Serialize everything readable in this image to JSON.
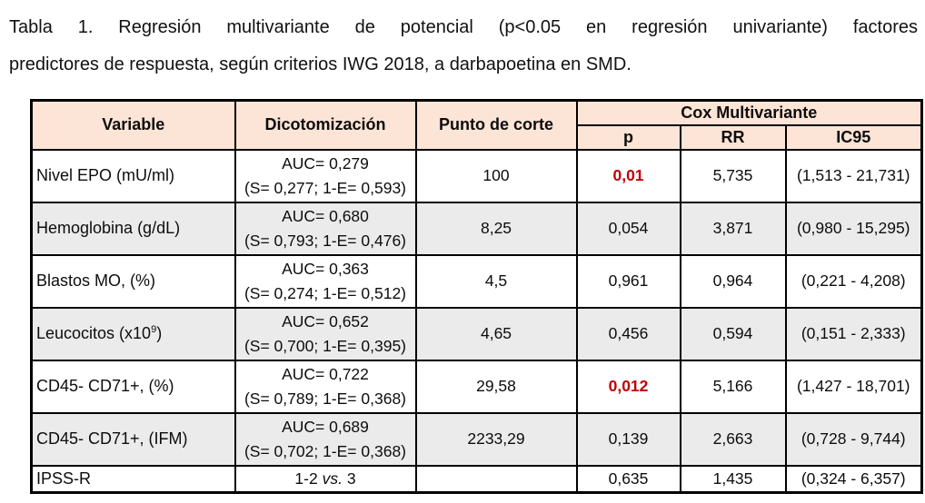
{
  "title": {
    "line1": "Tabla 1. Regresión multivariante de potencial (p<0.05 en regresión univariante) factores",
    "line2": "predictores de respuesta, según criterios IWG 2018, a darbapoetina en SMD."
  },
  "colors": {
    "header_bg": "#FCE4D6",
    "row_alt_bg": "#EBEBEB",
    "significant_text": "#C00000",
    "border": "#000000"
  },
  "table": {
    "headers": {
      "variable": "Variable",
      "dichotomization": "Dicotomización",
      "cutoff": "Punto de corte",
      "cox_group": "Cox Multivariante",
      "p": "p",
      "rr": "RR",
      "ic95": "IC95"
    },
    "rows": [
      {
        "variable": {
          "pre": "Nivel EPO (mU/ml)",
          "sup": "",
          "post": ""
        },
        "dichotomization": {
          "l1pre": "AUC= 0,279",
          "l1it": "",
          "l1post": "",
          "line2": "(S= 0,277; 1-E= 0,593)"
        },
        "cutoff": "100",
        "p": "0,01",
        "p_significant": true,
        "rr": "5,735",
        "ic95": "(1,513 - 21,731)",
        "shaded": false
      },
      {
        "variable": {
          "pre": "Hemoglobina (g/dL)",
          "sup": "",
          "post": ""
        },
        "dichotomization": {
          "l1pre": "AUC= 0,680",
          "l1it": "",
          "l1post": "",
          "line2": "(S= 0,793; 1-E= 0,476)"
        },
        "cutoff": "8,25",
        "p": "0,054",
        "p_significant": false,
        "rr": "3,871",
        "ic95": "(0,980 - 15,295)",
        "shaded": true
      },
      {
        "variable": {
          "pre": "Blastos MO, (%)",
          "sup": "",
          "post": ""
        },
        "dichotomization": {
          "l1pre": "AUC= 0,363",
          "l1it": "",
          "l1post": "",
          "line2": "(S= 0,274; 1-E= 0,512)"
        },
        "cutoff": "4,5",
        "p": "0,961",
        "p_significant": false,
        "rr": "0,964",
        "ic95": "(0,221 - 4,208)",
        "shaded": false
      },
      {
        "variable": {
          "pre": "Leucocitos (x10",
          "sup": "9",
          "post": ")"
        },
        "dichotomization": {
          "l1pre": "AUC= 0,652",
          "l1it": "",
          "l1post": "",
          "line2": "(S= 0,700; 1-E= 0,395)"
        },
        "cutoff": "4,65",
        "p": "0,456",
        "p_significant": false,
        "rr": "0,594",
        "ic95": "(0,151 - 2,333)",
        "shaded": true
      },
      {
        "variable": {
          "pre": "CD45- CD71+, (%)",
          "sup": "",
          "post": ""
        },
        "dichotomization": {
          "l1pre": "AUC= 0,722",
          "l1it": "",
          "l1post": "",
          "line2": "(S= 0,789; 1-E= 0,368)"
        },
        "cutoff": "29,58",
        "p": "0,012",
        "p_significant": true,
        "rr": "5,166",
        "ic95": "(1,427 - 18,701)",
        "shaded": false
      },
      {
        "variable": {
          "pre": "CD45- CD71+, (IFM)",
          "sup": "",
          "post": ""
        },
        "dichotomization": {
          "l1pre": "AUC= 0,689",
          "l1it": "",
          "l1post": "",
          "line2": "(S= 0,702; 1-E= 0,368)"
        },
        "cutoff": "2233,29",
        "p": "0,139",
        "p_significant": false,
        "rr": "2,663",
        "ic95": "(0,728 - 9,744)",
        "shaded": true
      },
      {
        "variable": {
          "pre": "IPSS-R",
          "sup": "",
          "post": ""
        },
        "dichotomization": {
          "l1pre": "1-2 ",
          "l1it": "vs.",
          "l1post": "  3",
          "line2": ""
        },
        "cutoff": "",
        "p": "0,635",
        "p_significant": false,
        "rr": "1,435",
        "ic95": "(0,324 - 6,357)",
        "shaded": false
      }
    ]
  }
}
